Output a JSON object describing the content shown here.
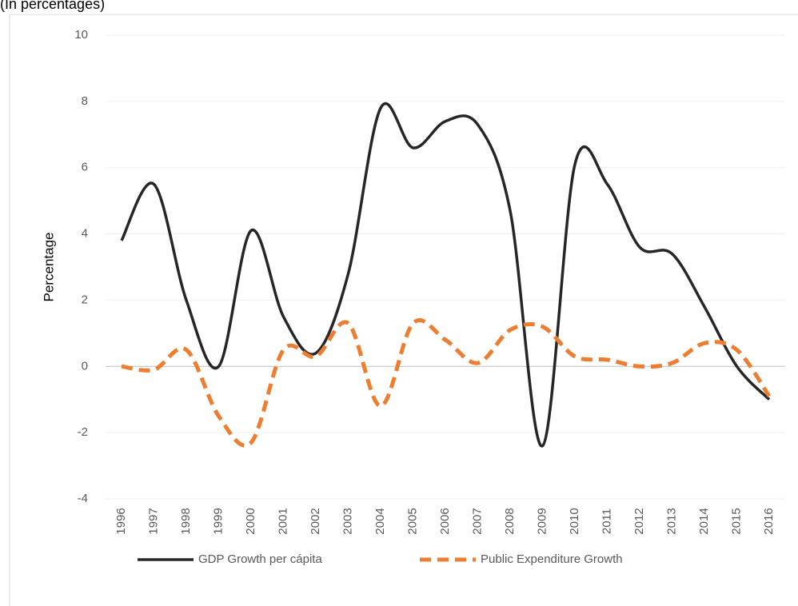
{
  "chart_data": {
    "type": "line",
    "subtitle": "(In percentages)",
    "y_label": "Percentage",
    "categories": [
      "1996",
      "1997",
      "1998",
      "1999",
      "2000",
      "2001",
      "2002",
      "2003",
      "2004",
      "2005",
      "2006",
      "2007",
      "2008",
      "2009",
      "2010",
      "2011",
      "2012",
      "2013",
      "2014",
      "2015",
      "2016"
    ],
    "series": [
      {
        "name": "GDP Growth per cápita",
        "color": "#262626",
        "dash": false,
        "values": [
          3.8,
          5.5,
          2.0,
          0.0,
          4.1,
          1.5,
          0.4,
          2.8,
          7.8,
          6.6,
          7.4,
          7.3,
          4.7,
          -2.4,
          6.1,
          5.5,
          3.6,
          3.4,
          1.8,
          0.0,
          -1.0
        ]
      },
      {
        "name": "Public Expenditure Growth",
        "color": "#ed7d31",
        "dash": true,
        "values": [
          0.0,
          -0.1,
          0.5,
          -1.5,
          -2.3,
          0.5,
          0.3,
          1.3,
          -1.2,
          1.3,
          0.8,
          0.1,
          1.1,
          1.2,
          0.3,
          0.2,
          0.0,
          0.1,
          0.7,
          0.5,
          -0.9
        ]
      }
    ],
    "ylim": [
      -4,
      10
    ],
    "yticks": [
      -4,
      -2,
      0,
      2,
      4,
      6,
      8,
      10
    ],
    "grid": true
  }
}
